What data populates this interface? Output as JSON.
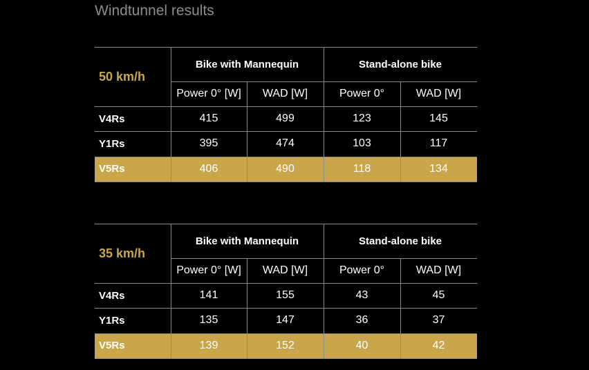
{
  "title": "Windtunnel results",
  "highlight_row": 2,
  "highlight_color": "#c9a64c",
  "tables": [
    {
      "speed": "50 km/h",
      "groups": [
        "Bike with Mannequin",
        "Stand-alone bike"
      ],
      "columns": [
        "Power 0° [W]",
        "WAD [W]",
        "Power 0°",
        "WAD [W]"
      ],
      "rows": [
        {
          "label": "V4Rs",
          "values": [
            415,
            499,
            123,
            145
          ]
        },
        {
          "label": "Y1Rs",
          "values": [
            395,
            474,
            103,
            117
          ]
        },
        {
          "label": "V5Rs",
          "values": [
            406,
            490,
            118,
            134
          ]
        }
      ]
    },
    {
      "speed": "35 km/h",
      "groups": [
        "Bike with Mannequin",
        "Stand-alone bike"
      ],
      "columns": [
        "Power 0° [W]",
        "WAD [W]",
        "Power 0°",
        "WAD [W]"
      ],
      "rows": [
        {
          "label": "V4Rs",
          "values": [
            141,
            155,
            43,
            45
          ]
        },
        {
          "label": "Y1Rs",
          "values": [
            135,
            147,
            36,
            37
          ]
        },
        {
          "label": "V5Rs",
          "values": [
            139,
            152,
            40,
            42
          ]
        }
      ]
    }
  ]
}
